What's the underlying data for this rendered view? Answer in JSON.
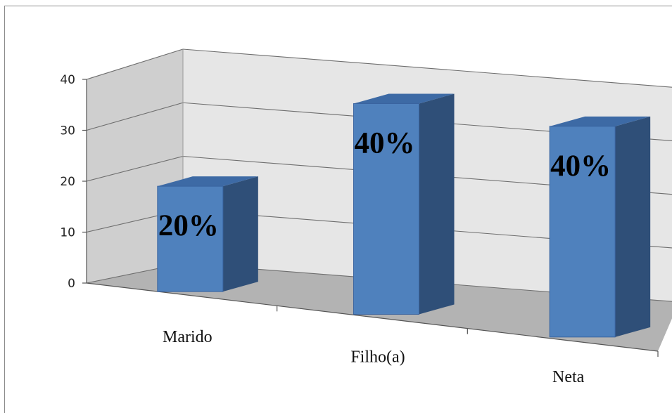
{
  "chart_data": {
    "type": "bar",
    "title": "",
    "xlabel": "",
    "ylabel": "",
    "categories": [
      "Marido",
      "Filho(a)",
      "Neta"
    ],
    "values": [
      20,
      40,
      40
    ],
    "data_labels": [
      "20%",
      "40%",
      "40%"
    ],
    "y_ticks": [
      "0",
      "10",
      "20",
      "30",
      "40"
    ],
    "ylim": [
      0,
      40
    ],
    "grid": true,
    "legend": "none",
    "colors": {
      "bar_front": "#4f81bd",
      "bar_side": "#2f4f78",
      "bar_top": "#3d6aa5",
      "back_wall": "#e6e6e6",
      "side_wall": "#cfcfcf",
      "floor": "#b3b3b3"
    }
  }
}
